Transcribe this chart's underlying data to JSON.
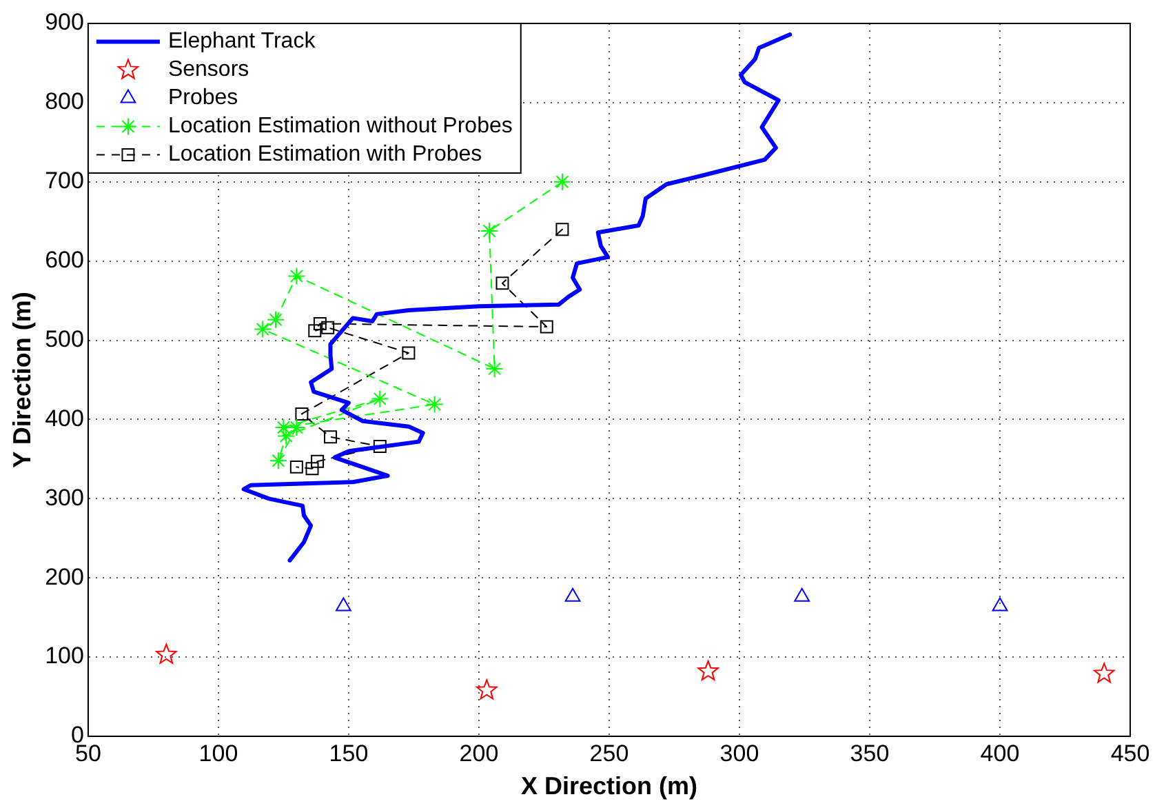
{
  "chart_data": {
    "type": "line",
    "xlabel": "X Direction (m)",
    "ylabel": "Y Direction (m)",
    "xlim": [
      50,
      450
    ],
    "xticks": [
      50,
      100,
      150,
      200,
      250,
      300,
      350,
      400,
      450
    ],
    "ylim": [
      0,
      900
    ],
    "yticks": [
      0,
      100,
      200,
      300,
      400,
      500,
      600,
      700,
      800,
      900
    ],
    "grid": true,
    "legend": "top left",
    "series": [
      {
        "name": "Elephant Track",
        "type": "line",
        "color": "#0000ff",
        "marker": "none",
        "line_style": "solid",
        "x": [
          127.4,
          132.8,
          135.5,
          132.8,
          132.3,
          119.4,
          109.7,
          112.4,
          151.6,
          165,
          144.6,
          150,
          176.9,
          178.5,
          173.1,
          155.4,
          147.3,
          150,
          136.6,
          135.5,
          143.5,
          143,
          143,
          151.6,
          159.1,
          160.8,
          173.1,
          200,
          230.6,
          234.4,
          238.7,
          236,
          237.6,
          249.5,
          246.8,
          245.7,
          261.3,
          262.9,
          264,
          272,
          288.2,
          309.7,
          314,
          308.6,
          315,
          302,
          300.5,
          306,
          307.5,
          319.4
        ],
        "values": [
          222,
          245,
          266,
          279,
          291,
          300,
          312,
          317,
          321,
          329,
          352,
          360,
          372,
          383,
          391,
          398,
          412,
          421,
          435,
          447,
          464,
          481,
          495,
          528,
          524,
          533,
          538,
          543,
          545,
          555,
          564,
          579,
          597,
          605,
          619,
          636,
          645,
          657,
          679,
          697,
          710,
          728,
          743,
          769,
          803,
          826,
          835,
          855,
          869,
          886
        ]
      },
      {
        "name": "Sensors",
        "type": "scatter",
        "color": "#ff0000",
        "marker": "star",
        "x": [
          80,
          203,
          288,
          440
        ],
        "values": [
          103,
          58,
          82,
          79
        ]
      },
      {
        "name": "Probes",
        "type": "scatter",
        "color": "#0000ff",
        "marker": "triangle",
        "x": [
          148,
          236,
          324,
          400
        ],
        "values": [
          164,
          176,
          176,
          164
        ]
      },
      {
        "name": "Location Estimation without Probes",
        "type": "line",
        "color": "#00ff00",
        "marker": "cross",
        "line_style": "dashed",
        "x": [
          232,
          204,
          206,
          130,
          122,
          117,
          183,
          125,
          162,
          126,
          123,
          130
        ],
        "values": [
          700,
          638,
          464,
          581,
          526,
          514,
          419,
          390,
          426,
          379,
          348,
          390
        ]
      },
      {
        "name": "Location Estimation with Probes",
        "type": "line",
        "color": "#000000",
        "marker": "square",
        "line_style": "dashed",
        "x": [
          232,
          209,
          226,
          139,
          137,
          142,
          173,
          132,
          143,
          162,
          138,
          136,
          130
        ],
        "values": [
          640,
          572,
          517,
          521,
          512,
          516,
          484,
          407,
          378,
          366,
          347,
          338,
          340
        ]
      }
    ]
  }
}
